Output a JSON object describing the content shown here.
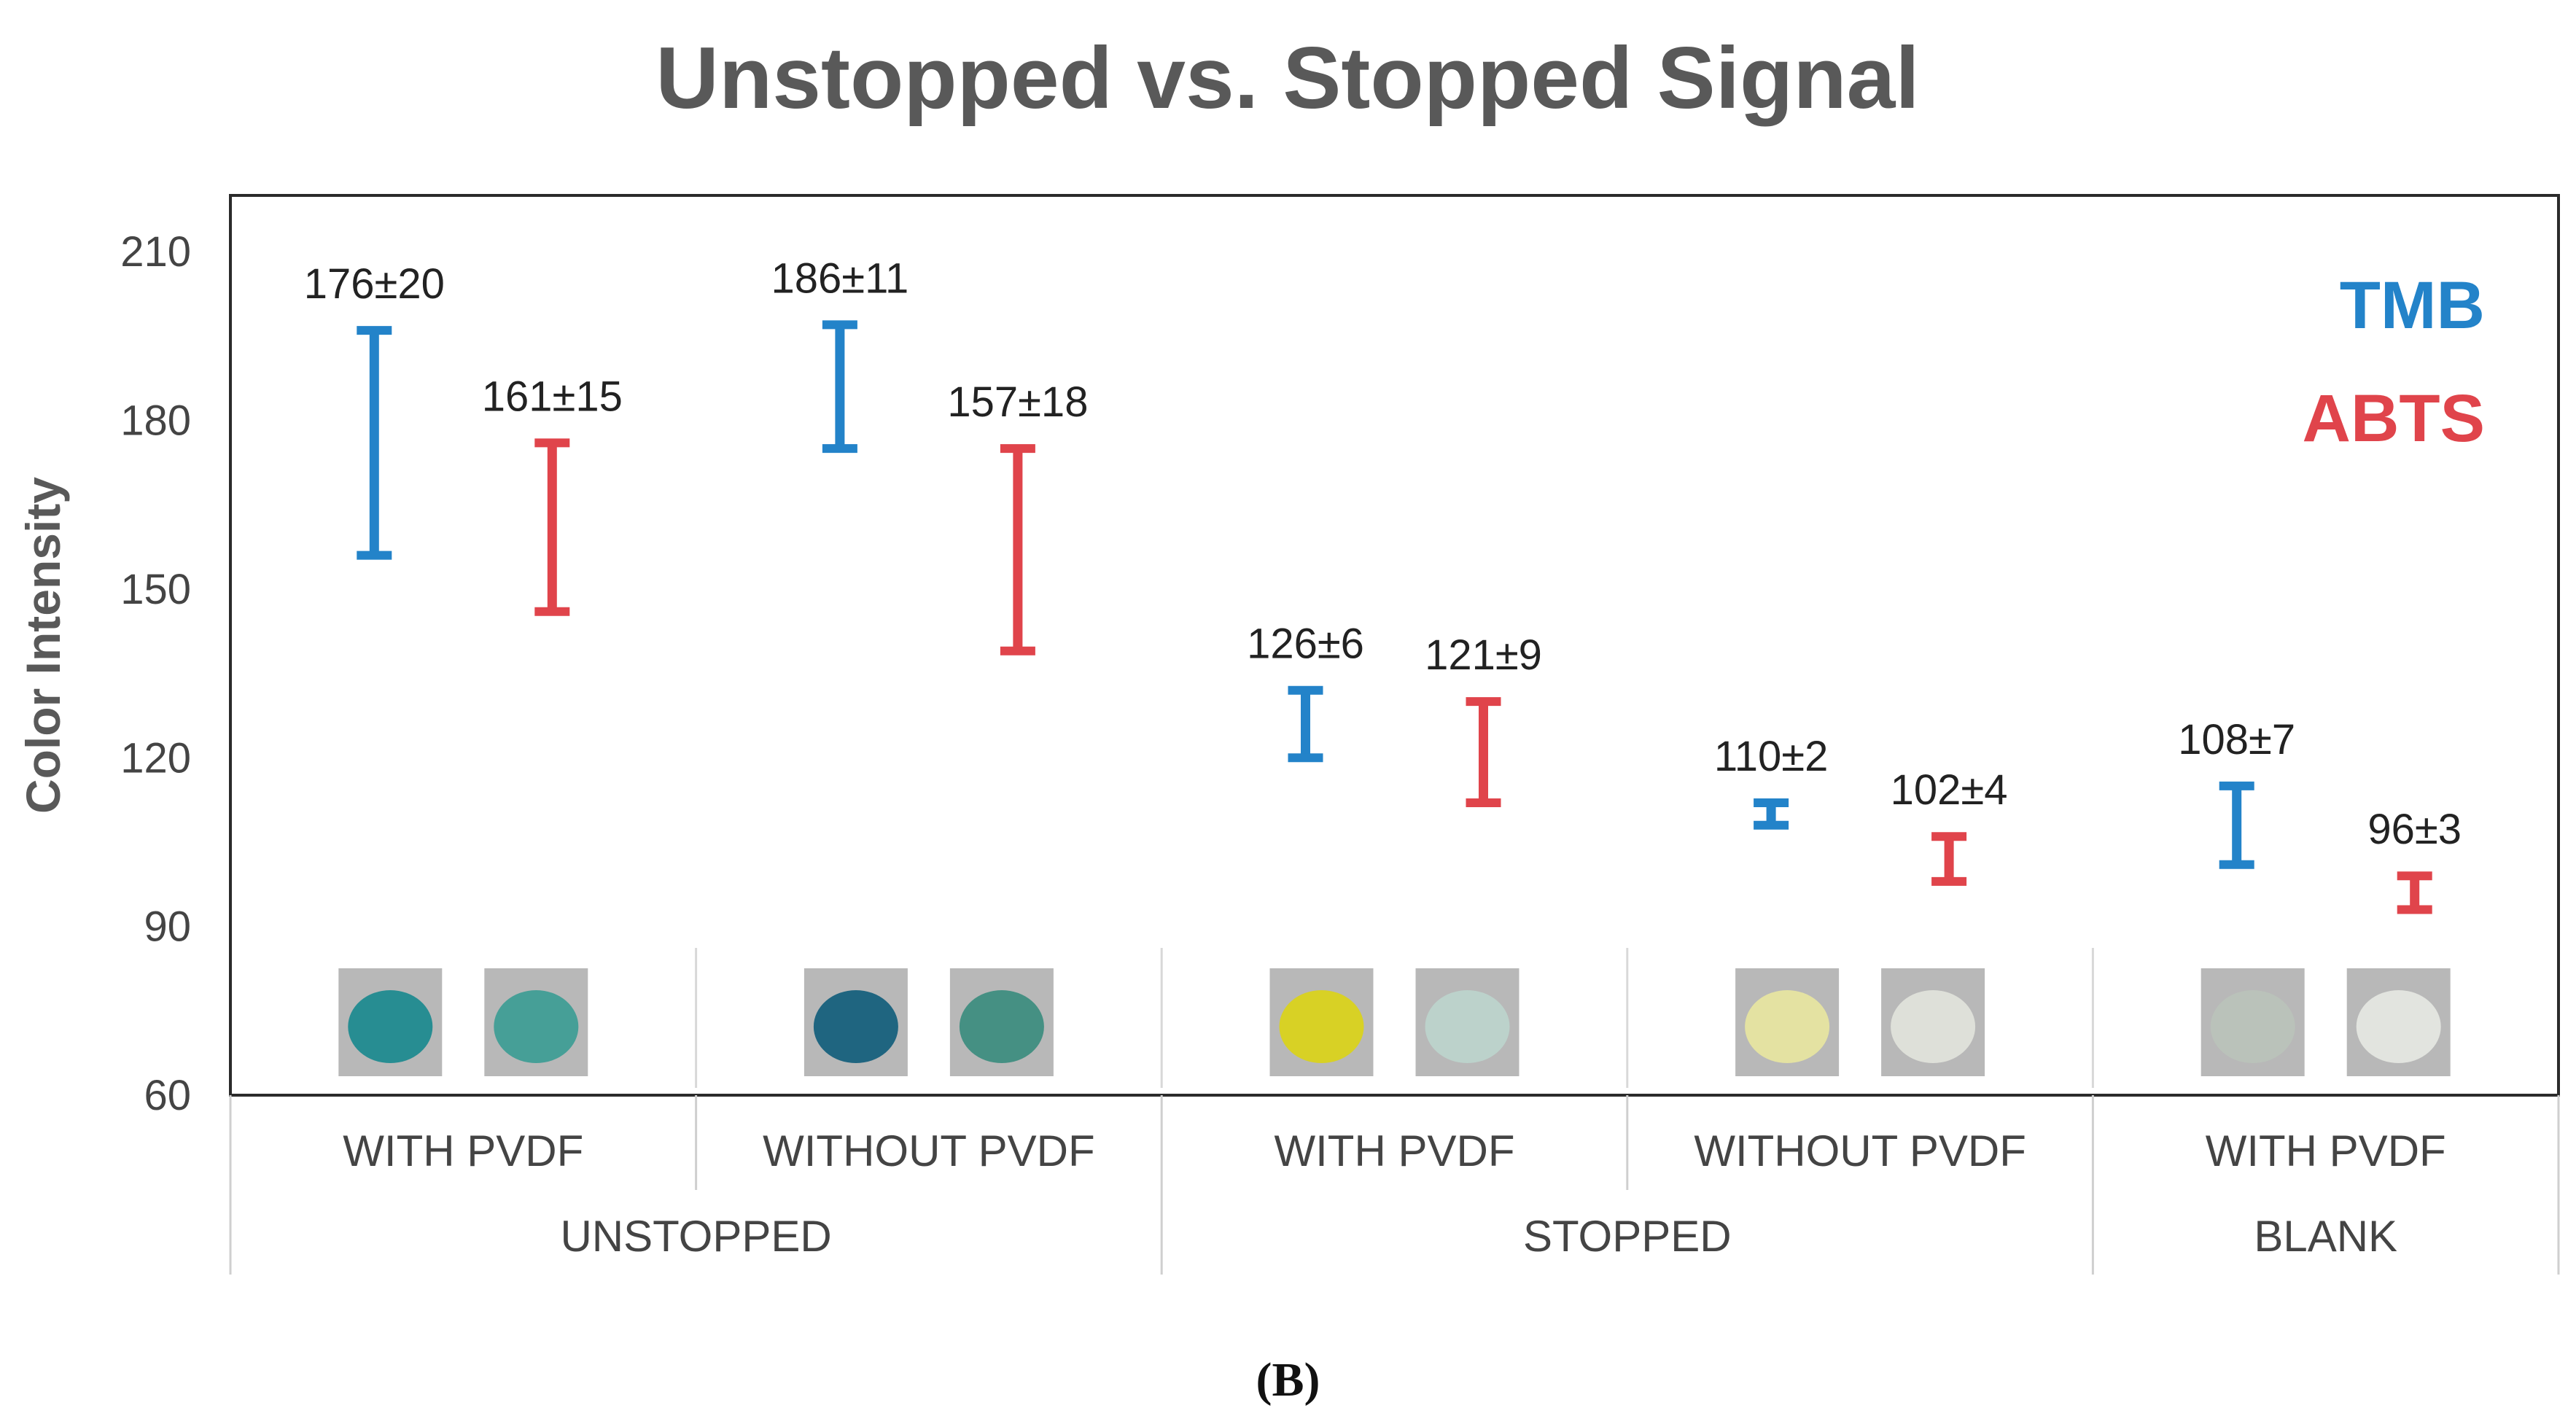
{
  "chart_data": {
    "type": "errorbar",
    "title": "Unstopped vs. Stopped Signal",
    "ylabel": "Color Intensity",
    "xlabel": "",
    "ylim": [
      60,
      220
    ],
    "yticks": [
      60,
      90,
      120,
      150,
      180,
      210
    ],
    "grid": false,
    "legend_position": "top-right",
    "groups": [
      {
        "label": "UNSTOPPED",
        "subgroups": [
          "WITH PVDF",
          "WITHOUT PVDF"
        ]
      },
      {
        "label": "STOPPED",
        "subgroups": [
          "WITH PVDF",
          "WITHOUT PVDF"
        ]
      },
      {
        "label": "BLANK",
        "subgroups": [
          "WITH PVDF"
        ]
      }
    ],
    "categories": [
      "UNSTOPPED / WITH PVDF",
      "UNSTOPPED / WITHOUT PVDF",
      "STOPPED / WITH PVDF",
      "STOPPED / WITHOUT PVDF",
      "BLANK / WITH PVDF"
    ],
    "series": [
      {
        "name": "TMB",
        "color": "#2383c9",
        "means": [
          176,
          186,
          126,
          110,
          108
        ],
        "errors": [
          20,
          11,
          6,
          2,
          7
        ],
        "labels": [
          "176±20",
          "186±11",
          "126±6",
          "110±2",
          "108±7"
        ],
        "spot_colors": [
          "#1f8a8f",
          "#16607c",
          "#d9d21c",
          "#e6e4a0",
          "#b9c2b9"
        ]
      },
      {
        "name": "ABTS",
        "color": "#e0444b",
        "means": [
          161,
          157,
          121,
          102,
          96
        ],
        "errors": [
          15,
          18,
          9,
          4,
          3
        ],
        "labels": [
          "161±15",
          "157±18",
          "121±9",
          "102±4",
          "96±3"
        ],
        "spot_colors": [
          "#3f9d95",
          "#3e8d80",
          "#bcd3cb",
          "#dfe1da",
          "#e4e6e0"
        ]
      }
    ]
  },
  "figure": {
    "caption": "(B)"
  }
}
